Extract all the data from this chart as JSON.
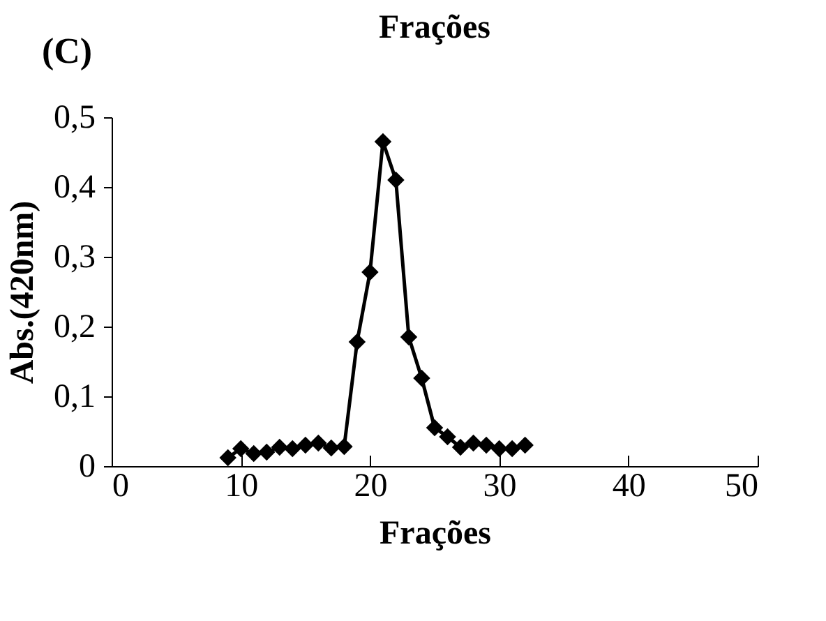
{
  "chart_data": {
    "type": "line",
    "title": "Frações",
    "xlabel": "Frações",
    "ylabel": "Abs.(420nm)",
    "annotations": [
      "(C)"
    ],
    "x": [
      9,
      10,
      11,
      12,
      13,
      14,
      15,
      16,
      17,
      18,
      19,
      20,
      21,
      22,
      23,
      24,
      25,
      26,
      27,
      28,
      29,
      30,
      31,
      32
    ],
    "series": [
      {
        "color": "#000000",
        "values": [
          0.012,
          0.025,
          0.018,
          0.02,
          0.027,
          0.025,
          0.03,
          0.033,
          0.026,
          0.028,
          0.178,
          0.278,
          0.465,
          0.41,
          0.185,
          0.126,
          0.055,
          0.042,
          0.027,
          0.033,
          0.03,
          0.025,
          0.025,
          0.03
        ]
      }
    ],
    "xlim": [
      0,
      50
    ],
    "xticks": [
      0,
      10,
      20,
      30,
      40,
      50
    ],
    "ylim": [
      0,
      0.5
    ],
    "yticks": [
      0,
      {
        "value": 0.1,
        "label": "0,1"
      },
      {
        "value": 0.2,
        "label": "0,2"
      },
      {
        "value": 0.3,
        "label": "0,3"
      },
      {
        "value": 0.4,
        "label": "0,4"
      },
      {
        "value": 0.5,
        "label": "0,5"
      }
    ],
    "grid": false,
    "legend": false,
    "marker": "diamond",
    "line_style": "solid"
  }
}
